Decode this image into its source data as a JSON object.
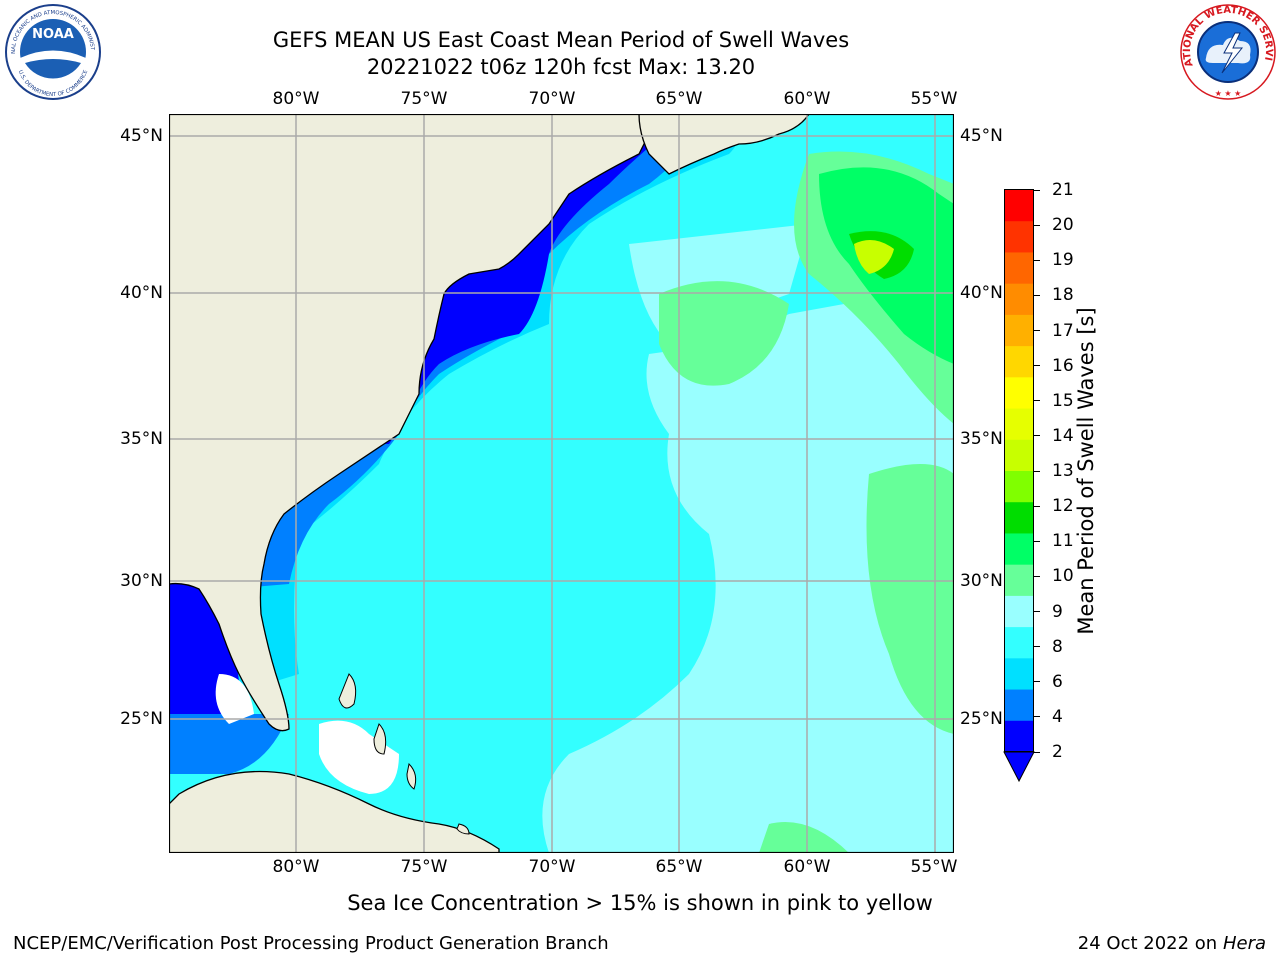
{
  "header": {
    "title_line1": "GEFS MEAN US East Coast Mean Period of Swell Waves",
    "title_line2": "20221022 t06z 120h fcst   Max: 13.20"
  },
  "logos": {
    "noaa_text": "NOAA",
    "noaa_ring_top": "NATIONAL OCEANIC AND ATMOSPHERIC ADMINISTRATION",
    "noaa_ring_bottom": "U.S. DEPARTMENT OF COMMERCE",
    "nws_ring": "NATIONAL WEATHER SERVICE"
  },
  "axes": {
    "lon_ticks": [
      "80°W",
      "75°W",
      "70°W",
      "65°W",
      "60°W",
      "55°W"
    ],
    "lat_ticks": [
      "45°N",
      "40°N",
      "35°N",
      "30°N",
      "25°N"
    ]
  },
  "colorbar": {
    "label": "Mean Period of Swell Waves [s]",
    "ticks": [
      "21",
      "20",
      "19",
      "18",
      "17",
      "16",
      "15",
      "14",
      "13",
      "12",
      "11",
      "10",
      "9",
      "8",
      "6",
      "4",
      "2"
    ],
    "colors": [
      "#ff0000",
      "#ff3300",
      "#ff6600",
      "#ff8c00",
      "#ffb000",
      "#ffd700",
      "#ffff00",
      "#e6ff00",
      "#c8ff00",
      "#80ff00",
      "#00dd00",
      "#00ff66",
      "#66ff99",
      "#99ffff",
      "#33ffff",
      "#00e0ff",
      "#0080ff",
      "#0000ff"
    ],
    "extend_color": "#0000ff"
  },
  "map": {
    "land_color": "#eeeedd",
    "grid_color": "#aaaaaa"
  },
  "notes": {
    "sea_ice": "Sea Ice Concentration > 15% is shown in pink to yellow"
  },
  "footer": {
    "left": "NCEP/EMC/Verification Post Processing Product Generation Branch",
    "date": "24 Oct 2022 on ",
    "machine": "Hera"
  }
}
